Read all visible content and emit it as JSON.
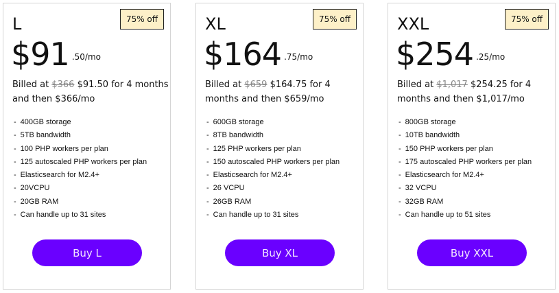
{
  "colors": {
    "accent": "#6a00ff",
    "badge_bg": "#fdf0c8"
  },
  "plans": [
    {
      "name": "L",
      "badge": "75% off",
      "price_whole": "$91",
      "price_cents": ".50/mo",
      "billed_prefix": "Billed at",
      "original_price": "$366",
      "billed_rest": "$91.50 for 4 months and then $366/mo",
      "features": [
        "400GB storage",
        "5TB bandwidth",
        "100 PHP workers per plan",
        "125 autoscaled PHP workers per plan",
        "Elasticsearch for M2.4+",
        "20VCPU",
        "20GB RAM",
        "Can handle up to 31 sites"
      ],
      "button": "Buy L"
    },
    {
      "name": "XL",
      "badge": "75% off",
      "price_whole": "$164",
      "price_cents": ".75/mo",
      "billed_prefix": "Billed at",
      "original_price": "$659",
      "billed_rest": "$164.75 for 4 months and then $659/mo",
      "features": [
        "600GB storage",
        "8TB bandwidth",
        "125 PHP workers per plan",
        "150 autoscaled PHP workers per plan",
        "Elasticsearch for M2.4+",
        "26 VCPU",
        "26GB RAM",
        "Can handle up to 31 sites"
      ],
      "button": "Buy XL"
    },
    {
      "name": "XXL",
      "badge": "75% off",
      "price_whole": "$254",
      "price_cents": ".25/mo",
      "billed_prefix": "Billed at",
      "original_price": "$1,017",
      "billed_rest": "$254.25 for 4 months and then $1,017/mo",
      "features": [
        "800GB storage",
        "10TB bandwidth",
        "150 PHP workers per plan",
        "175 autoscaled PHP workers per plan",
        "Elasticsearch for M2.4+",
        "32 VCPU",
        "32GB RAM",
        "Can handle up to 51 sites"
      ],
      "button": "Buy XXL"
    }
  ]
}
